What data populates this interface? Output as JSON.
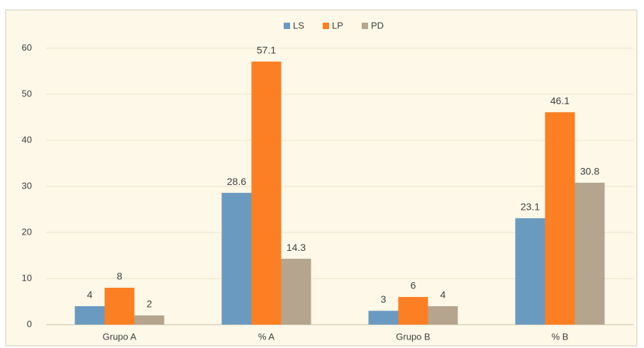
{
  "chart_data": {
    "type": "bar",
    "categories": [
      "Grupo A",
      "% A",
      "Grupo B",
      "% B"
    ],
    "series": [
      {
        "name": "LS",
        "color": "#6a9ac0",
        "values": [
          4,
          28.6,
          3,
          23.1
        ]
      },
      {
        "name": "LP",
        "color": "#fd7f23",
        "values": [
          8,
          57.1,
          6,
          46.1
        ]
      },
      {
        "name": "PD",
        "color": "#b5a58e",
        "values": [
          2,
          14.3,
          4,
          30.8
        ]
      }
    ],
    "ylim": [
      0,
      60
    ],
    "yticks": [
      0,
      10,
      20,
      30,
      40,
      50,
      60
    ],
    "grid": true,
    "legend": "top"
  }
}
